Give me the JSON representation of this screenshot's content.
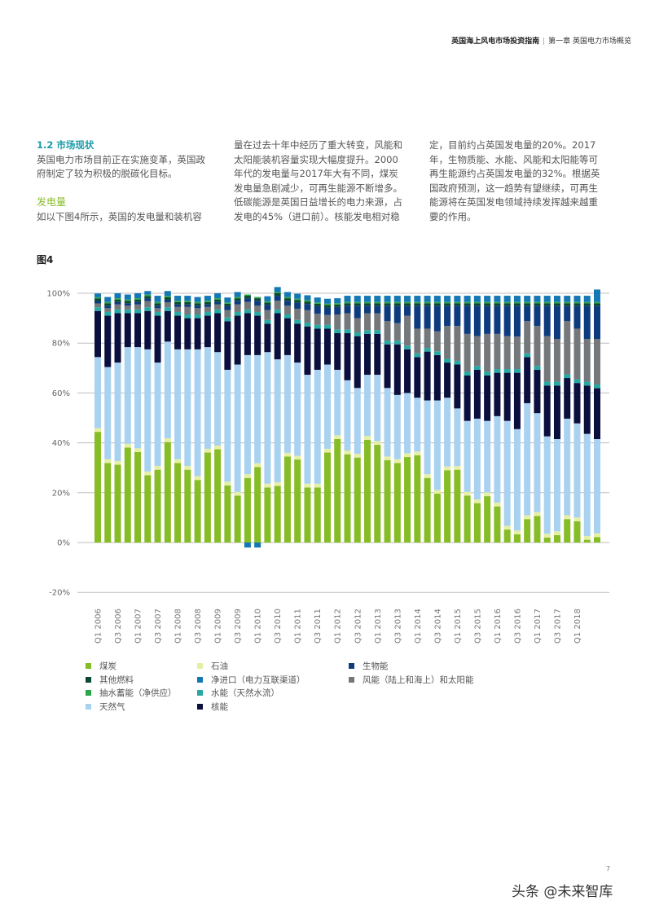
{
  "header": {
    "doc_title": "英国海上风电市场投资指南",
    "separator": "|",
    "chapter": "第一章 英国电力市场概览"
  },
  "body": {
    "section_title": "1.2 市场现状",
    "col1": [
      "英国电力市场目前正在实施变革，英国政",
      "府制定了较为积极的脱碳化目标。"
    ],
    "subheading": "发电量",
    "col1b": [
      "如以下图4所示，英国的发电量和装机容"
    ],
    "col2": [
      "量在过去十年中经历了重大转变，风能和",
      "太阳能装机容量实现大幅度提升。2000",
      "年代的发电量与2017年大有不同，煤炭",
      "发电量急剧减少，可再生能源不断增多。",
      "低碳能源是英国日益增长的电力来源，占",
      "发电的45%（进口前）。核能发电相对稳"
    ],
    "col3": [
      "定，目前约占英国发电量的20%。2017",
      "年，生物质能、水能、风能和太阳能等可",
      "再生能源约占英国发电量的32%。根据英",
      "国政府预测，这一趋势有望继续，可再生",
      "能源将在英国发电领域持续发挥越来越重",
      "要的作用。"
    ]
  },
  "figure_label": "图4",
  "chart_data": {
    "type": "bar",
    "stacked": true,
    "xlabel": "",
    "ylabel": "",
    "ylim": [
      -20,
      100
    ],
    "yticks": [
      "100%",
      "80%",
      "60%",
      "40%",
      "20%",
      "0%",
      "-20%"
    ],
    "ytick_values": [
      100,
      80,
      60,
      40,
      20,
      0,
      -20
    ],
    "grid": true,
    "legend_position": "bottom",
    "xtick_labels": [
      "Q1 2006",
      "Q3 2006",
      "Q1 2007",
      "Q3 2007",
      "Q1 2008",
      "Q3 2008",
      "Q1 2009",
      "Q3 2009",
      "Q1 2010",
      "Q3 2010",
      "Q1 2011",
      "Q3 2011",
      "Q1 2012",
      "Q3 2012",
      "Q1 2013",
      "Q3 2013",
      "Q1 2014",
      "Q3 2014",
      "Q1 2015",
      "Q3 2015",
      "Q1 2016",
      "Q3 2016",
      "Q1 2017",
      "Q3 2017",
      "Q1 2018"
    ],
    "categories": [
      "Q1 2006",
      "Q2 2006",
      "Q3 2006",
      "Q4 2006",
      "Q1 2007",
      "Q2 2007",
      "Q3 2007",
      "Q4 2007",
      "Q1 2008",
      "Q2 2008",
      "Q3 2008",
      "Q4 2008",
      "Q1 2009",
      "Q2 2009",
      "Q3 2009",
      "Q4 2009",
      "Q1 2010",
      "Q2 2010",
      "Q3 2010",
      "Q4 2010",
      "Q1 2011",
      "Q2 2011",
      "Q3 2011",
      "Q4 2011",
      "Q1 2012",
      "Q2 2012",
      "Q3 2012",
      "Q4 2012",
      "Q1 2013",
      "Q2 2013",
      "Q3 2013",
      "Q4 2013",
      "Q1 2014",
      "Q2 2014",
      "Q3 2014",
      "Q4 2014",
      "Q1 2015",
      "Q2 2015",
      "Q3 2015",
      "Q4 2015",
      "Q1 2016",
      "Q2 2016",
      "Q3 2016",
      "Q4 2016",
      "Q1 2017",
      "Q2 2017",
      "Q3 2017",
      "Q4 2017",
      "Q1 2018",
      "Q2 2018",
      "Q3 2018"
    ],
    "series": [
      {
        "name": "煤炭",
        "color": "#86bc25",
        "values": [
          44.4,
          31.9,
          31.2,
          38.1,
          36.3,
          27,
          29.2,
          40.3,
          31.9,
          29.2,
          25.1,
          36.1,
          37.4,
          22.9,
          18.8,
          25.9,
          30.3,
          22.1,
          22.7,
          34.5,
          33.3,
          22.1,
          22.1,
          36.1,
          41.5,
          35.4,
          34.1,
          41.2,
          39.2,
          33,
          31.9,
          34.3,
          35,
          25.9,
          19.6,
          29,
          29.2,
          18.8,
          15.8,
          18.6,
          14.5,
          5.2,
          3.3,
          9.4,
          10.7,
          2,
          3,
          9.4,
          8.5,
          1.1,
          2.2
        ]
      },
      {
        "name": "石油",
        "color": "#e6f0a3",
        "values": [
          1.5,
          1.5,
          1.5,
          1.5,
          1.5,
          1.5,
          1.5,
          1.5,
          1.5,
          1.5,
          1.5,
          1.5,
          1.5,
          1.5,
          1.5,
          1.5,
          1.5,
          1.5,
          1.5,
          1.5,
          1.5,
          1.5,
          1.5,
          1.5,
          1.5,
          1.5,
          1.5,
          1.5,
          1.5,
          1.5,
          1.5,
          1.5,
          1.5,
          1.5,
          1.5,
          1.5,
          1.5,
          1.5,
          1.5,
          1.5,
          1.5,
          1.5,
          1.5,
          1.5,
          1.5,
          1.5,
          1.5,
          1.5,
          1.5,
          1.5,
          1.5
        ]
      },
      {
        "name": "天然气",
        "color": "#a9d2f0",
        "values": [
          28.5,
          37,
          39.5,
          38.8,
          40.6,
          49,
          41.5,
          38.8,
          44.1,
          46.8,
          50.9,
          40.8,
          37.5,
          44.9,
          51.1,
          47.8,
          43.4,
          52.8,
          49.3,
          39.2,
          37.4,
          43.7,
          45.7,
          33.8,
          26.3,
          28.2,
          26.4,
          24.6,
          26.6,
          27.5,
          25.8,
          24.2,
          21.6,
          29.6,
          35.9,
          27.6,
          23.1,
          28.5,
          32.4,
          28.7,
          34.7,
          42.1,
          40.7,
          45,
          39.7,
          39.1,
          37,
          38.8,
          37.8,
          41,
          37.8
        ]
      },
      {
        "name": "核能",
        "color": "#0a0f3d",
        "values": [
          18.5,
          20.6,
          19.8,
          13.6,
          13.6,
          15.4,
          18.8,
          12.3,
          13.5,
          12.5,
          12.5,
          12.6,
          15.6,
          19.5,
          19.6,
          16.8,
          15.8,
          11.4,
          18.5,
          14.8,
          15.6,
          19.4,
          16.5,
          14.4,
          14.7,
          18.9,
          20.8,
          16.4,
          16.4,
          17.5,
          20.3,
          17.5,
          16.3,
          19.6,
          18.2,
          14.1,
          17.6,
          18.2,
          19.6,
          18.2,
          17.4,
          19.3,
          22.6,
          18.5,
          17.4,
          20.4,
          21.5,
          16.3,
          16.2,
          19.4,
          20.4
        ]
      },
      {
        "name": "水能（天然水流）",
        "color": "#26a9a3",
        "values": [
          1.5,
          1.5,
          1.5,
          1.5,
          1.5,
          1.5,
          1.5,
          1.5,
          1.5,
          1.5,
          1.5,
          1.5,
          1.5,
          1.5,
          1.5,
          1.5,
          1.5,
          1.5,
          1.5,
          1.5,
          1.5,
          1.5,
          1.5,
          1.5,
          1.5,
          1.5,
          1.5,
          1.5,
          1.5,
          1.5,
          1.5,
          1.5,
          1.5,
          1.5,
          1.5,
          1.5,
          1.5,
          1.5,
          1.5,
          1.5,
          1.5,
          1.5,
          1.5,
          1.5,
          1.5,
          1.5,
          1.5,
          1.5,
          1.5,
          1.5,
          1.5
        ]
      },
      {
        "name": "风能（陆上和海上）和太阳能",
        "color": "#75787b",
        "values": [
          1.5,
          1.5,
          2,
          1.5,
          2,
          2.5,
          1.5,
          2,
          2,
          3,
          2.5,
          2,
          2,
          3,
          3,
          3,
          2.5,
          4,
          3.5,
          3.5,
          4.5,
          5,
          4.5,
          4,
          6,
          6.5,
          5.7,
          6.8,
          6.8,
          7.8,
          7,
          12,
          9.9,
          7.7,
          8,
          13.2,
          14,
          15.2,
          12,
          15.2,
          14.1,
          13.2,
          13,
          12.9,
          16.1,
          18.3,
          17.2,
          21.3,
          20.3,
          17.2,
          18.3
        ]
      },
      {
        "name": "生物能",
        "color": "#0d3b7e",
        "values": [
          1,
          1,
          1,
          1,
          1,
          1,
          1,
          1,
          1,
          1,
          1,
          1,
          1,
          1.5,
          1.5,
          1.5,
          2,
          2,
          2,
          2,
          2.5,
          2.5,
          3,
          3,
          3,
          3,
          5,
          3,
          3,
          6.2,
          7,
          4,
          9.2,
          9.2,
          10.3,
          8.1,
          8.1,
          11.3,
          12.2,
          11.3,
          11.3,
          12.2,
          12.4,
          6.2,
          8.1,
          12.2,
          13.3,
          6.2,
          9.2,
          13.3,
          13.3
        ]
      },
      {
        "name": "其他燃料",
        "color": "#0b4a2e",
        "values": [
          1,
          1,
          1,
          1,
          1,
          1,
          1,
          1,
          1,
          1,
          1,
          1,
          1,
          1,
          1,
          1,
          1,
          1,
          1,
          1,
          1,
          1,
          1,
          1,
          1,
          1,
          1,
          1,
          1,
          1,
          1,
          1,
          1,
          1,
          1,
          1,
          1,
          1,
          1,
          1,
          1,
          1,
          1,
          1,
          1,
          1,
          1,
          1,
          1,
          1,
          1
        ]
      },
      {
        "name": "抽水蓄能（净供应）",
        "color": "#2aa84a",
        "values": [
          0.5,
          0.5,
          0.5,
          0.5,
          0.5,
          0.5,
          0.5,
          0.5,
          0.5,
          0.5,
          0.5,
          0.5,
          0.5,
          0.5,
          0.5,
          0.5,
          0.5,
          0.5,
          0.5,
          0.5,
          0.5,
          0.5,
          0.5,
          0.5,
          0.5,
          0.5,
          0.5,
          0.5,
          0.5,
          0.5,
          0.5,
          0.5,
          0.5,
          0.5,
          0.5,
          0.5,
          0.5,
          0.5,
          0.5,
          0.5,
          0.5,
          0.5,
          0.5,
          0.5,
          0.5,
          0.5,
          0.5,
          0.5,
          0.5,
          0.5,
          0.5
        ]
      },
      {
        "name": "净进口（电力互联渠道）",
        "color": "#1478b4",
        "values": [
          1.5,
          2,
          2,
          2,
          2,
          1.5,
          2.5,
          2,
          2,
          2,
          2,
          2,
          2,
          2,
          2,
          -2,
          -2,
          2,
          2,
          2,
          2,
          2,
          2,
          2,
          2,
          2.5,
          2.5,
          2.5,
          2.5,
          2.5,
          2.5,
          2.5,
          2.5,
          2.5,
          2.5,
          2.5,
          2.5,
          2.5,
          2.5,
          2.5,
          2.5,
          2.5,
          2.5,
          2.5,
          2.5,
          2.5,
          2.5,
          2.5,
          2.5,
          2.5,
          5
        ]
      }
    ],
    "legend_order": [
      0,
      7,
      8,
      2,
      1,
      9,
      4,
      3,
      6,
      5
    ]
  },
  "page_number": "7",
  "watermark": "头条 @未来智库"
}
